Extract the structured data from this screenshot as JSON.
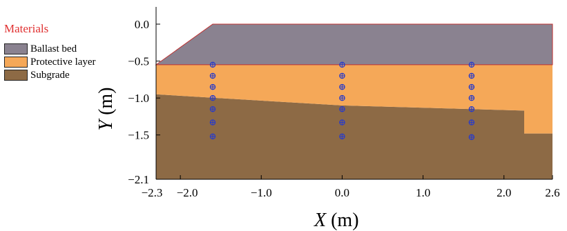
{
  "legend": {
    "title": "Materials",
    "items": [
      {
        "label": "Ballast bed",
        "color": "#8a8290"
      },
      {
        "label": "Protective layer",
        "color": "#f5a858"
      },
      {
        "label": "Subgrade",
        "color": "#8d6a45"
      }
    ]
  },
  "axes": {
    "xlabel_var": "X",
    "xlabel_unit": " (m)",
    "ylabel_var": "Y",
    "ylabel_unit": " (m)",
    "x_ticks": [
      "−2.3",
      "−2.0",
      "−1.0",
      "0.0",
      "1.0",
      "2.0",
      "2.6"
    ],
    "y_ticks": [
      "0.0",
      "−0.5",
      "−1.0",
      "−1.5",
      "−2.1"
    ],
    "x_tick_values": [
      -2.3,
      -2.0,
      -1.0,
      0.0,
      1.0,
      2.0,
      2.6
    ],
    "y_tick_values": [
      0.0,
      -0.5,
      -1.0,
      -1.5,
      -2.1
    ],
    "xlim": [
      -2.3,
      2.6
    ],
    "ylim": [
      -2.1,
      0.1
    ]
  },
  "materials": {
    "ballast": {
      "color": "#8a8290",
      "edge": "#c03030",
      "polygon": [
        [
          -2.3,
          -0.55
        ],
        [
          -1.6,
          0.0
        ],
        [
          2.6,
          0.0
        ],
        [
          2.6,
          -0.55
        ]
      ]
    },
    "protective": {
      "color": "#f5a858",
      "polygon": [
        [
          -2.3,
          -0.55
        ],
        [
          2.6,
          -0.55
        ],
        [
          2.6,
          -1.48
        ],
        [
          2.25,
          -1.48
        ],
        [
          2.25,
          -1.17
        ],
        [
          0.0,
          -1.1
        ],
        [
          -2.3,
          -0.95
        ]
      ]
    },
    "subgrade": {
      "color": "#8d6a45",
      "polygon": [
        [
          -2.3,
          -0.95
        ],
        [
          0.0,
          -1.1
        ],
        [
          2.25,
          -1.17
        ],
        [
          2.25,
          -1.48
        ],
        [
          2.6,
          -1.48
        ],
        [
          2.6,
          -2.1
        ],
        [
          -2.3,
          -2.1
        ]
      ]
    }
  },
  "monitor_points": {
    "color": "#2a3cc8",
    "columns": [
      {
        "x": -1.6,
        "y": [
          -0.55,
          -0.7,
          -0.85,
          -1.0,
          -1.15,
          -1.33,
          -1.52
        ]
      },
      {
        "x": 0.0,
        "y": [
          -0.55,
          -0.7,
          -0.85,
          -1.0,
          -1.15,
          -1.33,
          -1.52
        ]
      },
      {
        "x": 1.6,
        "y": [
          -0.55,
          -0.7,
          -0.85,
          -1.0,
          -1.15,
          -1.33,
          -1.53
        ]
      }
    ]
  }
}
